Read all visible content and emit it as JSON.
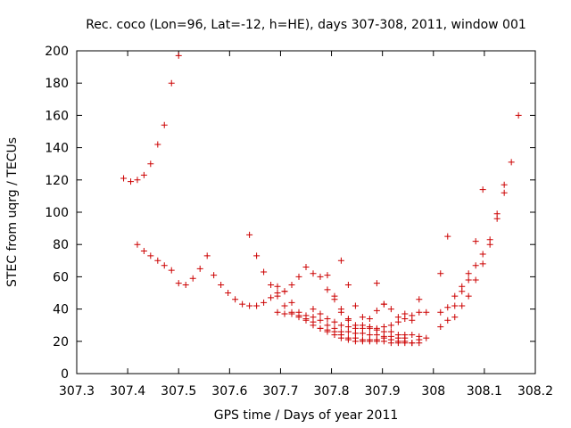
{
  "chart_data": {
    "type": "scatter",
    "title": "Rec. coco (Lon=96, Lat=-12, h=HE), days 307-308, 2011, window 001",
    "xlabel": "GPS time / Days of year 2011",
    "ylabel": "STEC from uqrg / TECUs",
    "xlim": [
      307.3,
      308.2
    ],
    "ylim": [
      0,
      200
    ],
    "xticks": [
      "307.3",
      "307.4",
      "307.5",
      "307.6",
      "307.7",
      "307.8",
      "307.9",
      "308",
      "308.1",
      "308.2"
    ],
    "yticks": [
      "0",
      "20",
      "40",
      "60",
      "80",
      "100",
      "120",
      "140",
      "160",
      "180",
      "200"
    ],
    "grid": false,
    "legend": "none",
    "marker": "plus",
    "color": "#cc0000",
    "points": [
      [
        307.392,
        121
      ],
      [
        307.406,
        119
      ],
      [
        307.419,
        120
      ],
      [
        307.432,
        123
      ],
      [
        307.445,
        130
      ],
      [
        307.459,
        142
      ],
      [
        307.472,
        154
      ],
      [
        307.486,
        180
      ],
      [
        307.5,
        197
      ],
      [
        307.419,
        80
      ],
      [
        307.432,
        76
      ],
      [
        307.445,
        73
      ],
      [
        307.459,
        70
      ],
      [
        307.472,
        67
      ],
      [
        307.486,
        64
      ],
      [
        307.5,
        56
      ],
      [
        307.514,
        55
      ],
      [
        307.528,
        59
      ],
      [
        307.542,
        65
      ],
      [
        307.556,
        73
      ],
      [
        307.569,
        61
      ],
      [
        307.583,
        55
      ],
      [
        307.597,
        50
      ],
      [
        307.611,
        46
      ],
      [
        307.625,
        43
      ],
      [
        307.639,
        42
      ],
      [
        307.653,
        42
      ],
      [
        307.667,
        44
      ],
      [
        307.681,
        47
      ],
      [
        307.694,
        50
      ],
      [
        307.708,
        51
      ],
      [
        307.722,
        55
      ],
      [
        307.736,
        60
      ],
      [
        307.75,
        66
      ],
      [
        307.764,
        62
      ],
      [
        307.778,
        60
      ],
      [
        307.792,
        61
      ],
      [
        307.639,
        86
      ],
      [
        307.653,
        73
      ],
      [
        307.667,
        63
      ],
      [
        307.681,
        55
      ],
      [
        307.694,
        54
      ],
      [
        307.708,
        51
      ],
      [
        307.694,
        38
      ],
      [
        307.708,
        37
      ],
      [
        307.722,
        37
      ],
      [
        307.736,
        35
      ],
      [
        307.75,
        34
      ],
      [
        307.764,
        32
      ],
      [
        307.778,
        28
      ],
      [
        307.792,
        27
      ],
      [
        307.806,
        26
      ],
      [
        307.819,
        24
      ],
      [
        307.833,
        22
      ],
      [
        307.847,
        22
      ],
      [
        307.861,
        21
      ],
      [
        307.875,
        21
      ],
      [
        307.889,
        20
      ],
      [
        307.903,
        20
      ],
      [
        307.917,
        19
      ],
      [
        307.931,
        19
      ],
      [
        307.944,
        19
      ],
      [
        307.958,
        19
      ],
      [
        307.972,
        21
      ],
      [
        307.986,
        22
      ],
      [
        307.694,
        48
      ],
      [
        307.708,
        42
      ],
      [
        307.722,
        38
      ],
      [
        307.736,
        36
      ],
      [
        307.75,
        33
      ],
      [
        307.764,
        30
      ],
      [
        307.778,
        28
      ],
      [
        307.792,
        26
      ],
      [
        307.806,
        24
      ],
      [
        307.819,
        22
      ],
      [
        307.833,
        21
      ],
      [
        307.847,
        20
      ],
      [
        307.861,
        20
      ],
      [
        307.875,
        20
      ],
      [
        307.889,
        21
      ],
      [
        307.903,
        22
      ],
      [
        307.917,
        21
      ],
      [
        307.931,
        20
      ],
      [
        307.944,
        20
      ],
      [
        307.958,
        19
      ],
      [
        307.972,
        19
      ],
      [
        307.722,
        44
      ],
      [
        307.736,
        38
      ],
      [
        307.75,
        36
      ],
      [
        307.764,
        35
      ],
      [
        307.778,
        33
      ],
      [
        307.792,
        30
      ],
      [
        307.806,
        28
      ],
      [
        307.819,
        26
      ],
      [
        307.833,
        26
      ],
      [
        307.847,
        25
      ],
      [
        307.861,
        25
      ],
      [
        307.875,
        24
      ],
      [
        307.889,
        24
      ],
      [
        307.903,
        23
      ],
      [
        307.917,
        23
      ],
      [
        307.931,
        22
      ],
      [
        307.944,
        22
      ],
      [
        307.764,
        40
      ],
      [
        307.778,
        37
      ],
      [
        307.792,
        34
      ],
      [
        307.806,
        32
      ],
      [
        307.819,
        30
      ],
      [
        307.833,
        29
      ],
      [
        307.847,
        28
      ],
      [
        307.861,
        28
      ],
      [
        307.875,
        28
      ],
      [
        307.889,
        27
      ],
      [
        307.903,
        26
      ],
      [
        307.917,
        26
      ],
      [
        307.931,
        24
      ],
      [
        307.944,
        24
      ],
      [
        307.958,
        24
      ],
      [
        307.972,
        23
      ],
      [
        307.792,
        52
      ],
      [
        307.806,
        46
      ],
      [
        307.819,
        38
      ],
      [
        307.833,
        33
      ],
      [
        307.847,
        30
      ],
      [
        307.861,
        30
      ],
      [
        307.875,
        29
      ],
      [
        307.889,
        28
      ],
      [
        307.903,
        29
      ],
      [
        307.917,
        30
      ],
      [
        307.931,
        32
      ],
      [
        307.944,
        34
      ],
      [
        307.958,
        36
      ],
      [
        307.972,
        38
      ],
      [
        307.986,
        38
      ],
      [
        307.806,
        48
      ],
      [
        307.819,
        40
      ],
      [
        307.833,
        34
      ],
      [
        307.847,
        42
      ],
      [
        307.861,
        35
      ],
      [
        307.875,
        34
      ],
      [
        307.889,
        39
      ],
      [
        307.903,
        43
      ],
      [
        307.917,
        40
      ],
      [
        307.931,
        35
      ],
      [
        307.944,
        37
      ],
      [
        307.958,
        33
      ],
      [
        307.972,
        46
      ],
      [
        307.819,
        70
      ],
      [
        307.833,
        55
      ],
      [
        307.889,
        56
      ],
      [
        307.903,
        43
      ],
      [
        308.014,
        29
      ],
      [
        308.014,
        38
      ],
      [
        308.014,
        62
      ],
      [
        308.028,
        85
      ],
      [
        308.028,
        41
      ],
      [
        308.028,
        33
      ],
      [
        308.042,
        48
      ],
      [
        308.042,
        42
      ],
      [
        308.042,
        35
      ],
      [
        308.056,
        54
      ],
      [
        308.056,
        51
      ],
      [
        308.056,
        42
      ],
      [
        308.069,
        62
      ],
      [
        308.069,
        58
      ],
      [
        308.069,
        48
      ],
      [
        308.083,
        82
      ],
      [
        308.083,
        67
      ],
      [
        308.083,
        58
      ],
      [
        308.097,
        114
      ],
      [
        308.097,
        74
      ],
      [
        308.097,
        68
      ],
      [
        308.111,
        83
      ],
      [
        308.111,
        80
      ],
      [
        308.125,
        99
      ],
      [
        308.125,
        96
      ],
      [
        308.139,
        117
      ],
      [
        308.139,
        112
      ],
      [
        308.153,
        131
      ],
      [
        308.167,
        160
      ]
    ]
  }
}
